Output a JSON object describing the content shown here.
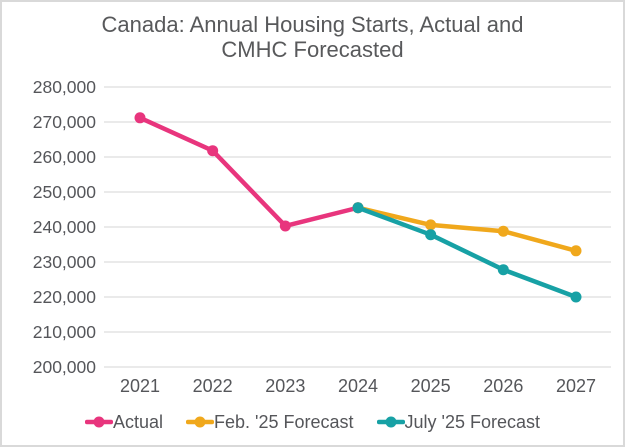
{
  "chart_data": {
    "type": "line",
    "title": "Canada: Annual Housing Starts, Actual and CMHC Forecasted",
    "title_lines": [
      "Canada: Annual Housing Starts, Actual and",
      "CMHC Forecasted"
    ],
    "x": [
      2021,
      2022,
      2023,
      2024,
      2025,
      2026,
      2027
    ],
    "x_tick_labels": [
      "2021",
      "2022",
      "2023",
      "2024",
      "2025",
      "2026",
      "2027"
    ],
    "ylim": [
      200000,
      280000
    ],
    "yticks": [
      {
        "value": 280000,
        "label": "280,000"
      },
      {
        "value": 270000,
        "label": "270,000"
      },
      {
        "value": 260000,
        "label": "260,000"
      },
      {
        "value": 250000,
        "label": "250,000"
      },
      {
        "value": 240000,
        "label": "240,000"
      },
      {
        "value": 230000,
        "label": "230,000"
      },
      {
        "value": 220000,
        "label": "220,000"
      },
      {
        "value": 210000,
        "label": "210,000"
      },
      {
        "value": 200000,
        "label": "200,000"
      }
    ],
    "grid": true,
    "legend_position": "bottom",
    "series": [
      {
        "name": "Actual",
        "color": "#e8357d",
        "values": [
          271200,
          261800,
          240300,
          245500,
          null,
          null,
          null
        ]
      },
      {
        "name": "Feb. '25 Forecast",
        "color": "#f0a81c",
        "values": [
          null,
          null,
          null,
          245500,
          240600,
          238800,
          233200
        ]
      },
      {
        "name": "July '25 Forecast",
        "color": "#17a1a5",
        "values": [
          null,
          null,
          null,
          245500,
          237800,
          227800,
          220000
        ]
      }
    ],
    "colors": {
      "gridline": "#dedede",
      "text": "#55565a",
      "title": "#58595b",
      "frame_border": "#d9d9d9",
      "background": "#ffffff"
    }
  }
}
